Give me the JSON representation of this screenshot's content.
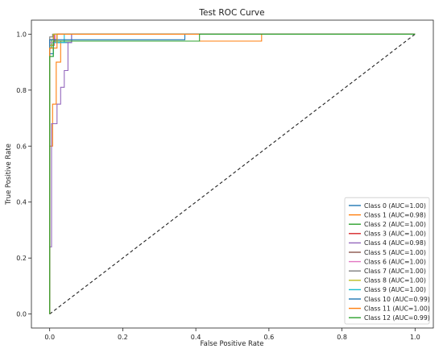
{
  "chart_data": {
    "type": "line",
    "title": "Test ROC Curve",
    "xlabel": "False Positive Rate",
    "ylabel": "True Positive Rate",
    "xlim": [
      -0.05,
      1.05
    ],
    "ylim": [
      -0.05,
      1.05
    ],
    "xticks": [
      "0.0",
      "0.2",
      "0.4",
      "0.6",
      "0.8",
      "1.0"
    ],
    "yticks": [
      "0.0",
      "0.2",
      "0.4",
      "0.6",
      "0.8",
      "1.0"
    ],
    "xtick_values": [
      0,
      0.2,
      0.4,
      0.6,
      0.8,
      1.0
    ],
    "ytick_values": [
      0,
      0.2,
      0.4,
      0.6,
      0.8,
      1.0
    ],
    "grid": false,
    "legend_position": "bottom-right",
    "diagonal": {
      "x": [
        0,
        1
      ],
      "y": [
        0,
        1
      ],
      "color": "#222222",
      "style": "dashed"
    },
    "series": [
      {
        "name": "Class 0 (AUC=1.00)",
        "color": "#1f77b4",
        "x": [
          0,
          0,
          0.01,
          0.01,
          0.06,
          0.06,
          1.0
        ],
        "y": [
          0,
          0.93,
          0.93,
          0.97,
          0.97,
          1.0,
          1.0
        ]
      },
      {
        "name": "Class 1 (AUC=0.98)",
        "color": "#ff7f0e",
        "x": [
          0,
          0,
          0.008,
          0.008,
          0.018,
          0.018,
          0.03,
          0.03,
          0.58,
          0.58,
          1.0
        ],
        "y": [
          0,
          0.6,
          0.6,
          0.75,
          0.75,
          0.9,
          0.9,
          0.975,
          0.975,
          1.0,
          1.0
        ]
      },
      {
        "name": "Class 2 (AUC=1.00)",
        "color": "#2ca02c",
        "x": [
          0,
          0,
          0.005,
          0.005,
          0.02,
          0.02,
          1.0
        ],
        "y": [
          0,
          0.95,
          0.95,
          0.98,
          0.98,
          1.0,
          1.0
        ]
      },
      {
        "name": "Class 3 (AUC=1.00)",
        "color": "#d62728",
        "x": [
          0,
          0,
          0.012,
          0.012,
          1.0
        ],
        "y": [
          0,
          0.96,
          0.96,
          1.0,
          1.0
        ]
      },
      {
        "name": "Class 4 (AUC=0.98)",
        "color": "#9467bd",
        "x": [
          0,
          0,
          0.005,
          0.005,
          0.02,
          0.02,
          0.03,
          0.03,
          0.04,
          0.04,
          0.05,
          0.05,
          0.06,
          0.06,
          1.0
        ],
        "y": [
          0,
          0.24,
          0.24,
          0.68,
          0.68,
          0.75,
          0.75,
          0.81,
          0.81,
          0.87,
          0.87,
          0.97,
          0.97,
          1.0,
          1.0
        ]
      },
      {
        "name": "Class 5 (AUC=1.00)",
        "color": "#8c564b",
        "x": [
          0,
          0,
          0.01,
          0.01,
          1.0
        ],
        "y": [
          0,
          0.98,
          0.98,
          1.0,
          1.0
        ]
      },
      {
        "name": "Class 6 (AUC=1.00)",
        "color": "#e377c2",
        "x": [
          0,
          0,
          0.015,
          0.015,
          1.0
        ],
        "y": [
          0,
          0.97,
          0.97,
          1.0,
          1.0
        ]
      },
      {
        "name": "Class 7 (AUC=1.00)",
        "color": "#7f7f7f",
        "x": [
          0,
          0,
          0.008,
          0.008,
          1.0
        ],
        "y": [
          0,
          0.99,
          0.99,
          1.0,
          1.0
        ]
      },
      {
        "name": "Class 8 (AUC=1.00)",
        "color": "#bcbd22",
        "x": [
          0,
          0,
          0.01,
          0.01,
          1.0
        ],
        "y": [
          0,
          0.96,
          0.96,
          1.0,
          1.0
        ]
      },
      {
        "name": "Class 9 (AUC=1.00)",
        "color": "#17becf",
        "x": [
          0,
          0,
          0.01,
          0.01,
          0.04,
          0.04,
          1.0
        ],
        "y": [
          0,
          0.92,
          0.92,
          0.97,
          0.97,
          1.0,
          1.0
        ]
      },
      {
        "name": "Class 10 (AUC=0.99)",
        "color": "#1f77b4",
        "x": [
          0,
          0,
          0.37,
          0.37,
          0.41,
          0.41,
          1.0
        ],
        "y": [
          0,
          0.98,
          0.98,
          1.0,
          1.0,
          1.0,
          1.0
        ]
      },
      {
        "name": "Class 11 (AUC=1.00)",
        "color": "#ff7f0e",
        "x": [
          0,
          0,
          0.02,
          0.02,
          1.0
        ],
        "y": [
          0,
          0.95,
          0.95,
          1.0,
          1.0
        ]
      },
      {
        "name": "Class 12 (AUC=0.99)",
        "color": "#2ca02c",
        "x": [
          0,
          0,
          0.01,
          0.01,
          0.41,
          0.41,
          1.0
        ],
        "y": [
          0,
          0.92,
          0.92,
          0.975,
          0.975,
          1.0,
          1.0
        ]
      }
    ]
  }
}
